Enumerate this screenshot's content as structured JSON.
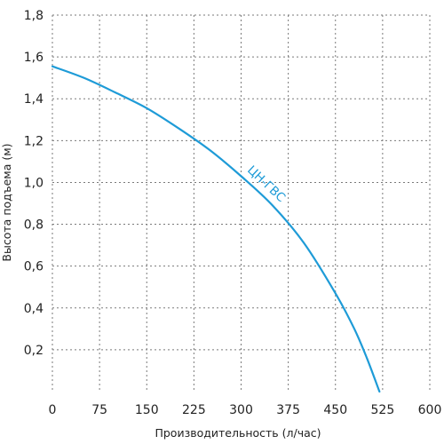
{
  "chart_data": {
    "type": "line",
    "title": "",
    "xlabel": "Производительность (л/час)",
    "ylabel": "Высота подъема (м)",
    "xlim": [
      0,
      600
    ],
    "ylim": [
      0,
      1.8
    ],
    "x_ticks": [
      {
        "value": 0,
        "label": "0"
      },
      {
        "value": 75,
        "label": "75"
      },
      {
        "value": 150,
        "label": "150"
      },
      {
        "value": 225,
        "label": "225"
      },
      {
        "value": 300,
        "label": "300"
      },
      {
        "value": 375,
        "label": "375"
      },
      {
        "value": 450,
        "label": "450"
      },
      {
        "value": 525,
        "label": "525"
      },
      {
        "value": 600,
        "label": "600"
      }
    ],
    "y_ticks": [
      {
        "value": 0.2,
        "label": "0,2"
      },
      {
        "value": 0.4,
        "label": "0,4"
      },
      {
        "value": 0.6,
        "label": "0,6"
      },
      {
        "value": 0.8,
        "label": "0,8"
      },
      {
        "value": 1.0,
        "label": "1,0"
      },
      {
        "value": 1.2,
        "label": "1,2"
      },
      {
        "value": 1.4,
        "label": "1,4"
      },
      {
        "value": 1.6,
        "label": "1,6"
      },
      {
        "value": 1.8,
        "label": "1,8"
      }
    ],
    "grid": true,
    "series": [
      {
        "name": "ЦН-ГВС",
        "color": "#1e9bd7",
        "label_anchor_x": 336,
        "label_anchor_y": 0.98,
        "x": [
          0,
          50,
          100,
          150,
          200,
          250,
          300,
          350,
          400,
          450,
          480,
          500,
          520
        ],
        "y": [
          1.555,
          1.5,
          1.43,
          1.355,
          1.26,
          1.155,
          1.03,
          0.89,
          0.71,
          0.47,
          0.3,
          0.16,
          0.0
        ]
      }
    ]
  }
}
